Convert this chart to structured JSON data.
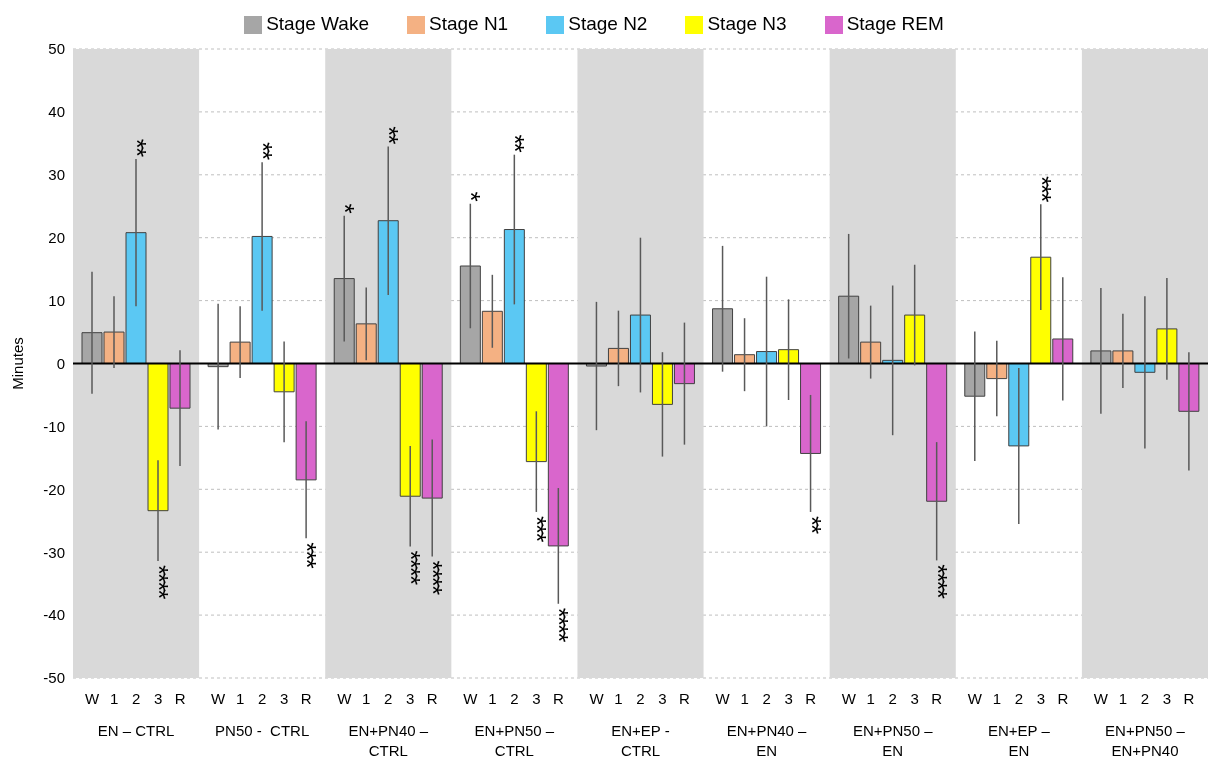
{
  "chart_data": {
    "type": "bar",
    "ylabel": "Minutes",
    "categories": [
      "EN – CTRL",
      "PN50 -  CTRL",
      "EN+PN40 –\nCTRL",
      "EN+PN50 –\nCTRL",
      "EN+EP -\nCTRL",
      "EN+PN40 –\nEN",
      "EN+PN50 –\nEN",
      "EN+EP –\nEN",
      "EN+PN50 –\nEN+PN40"
    ],
    "series": [
      {
        "name": "Stage Wake",
        "color": "#a6a6a6",
        "values": [
          4.9,
          -0.5,
          13.5,
          15.5,
          -0.4,
          8.7,
          10.7,
          -5.2,
          2.0
        ],
        "errors": [
          9.7,
          10,
          10,
          9.9,
          10.2,
          10,
          9.9,
          10.3,
          10
        ],
        "value_labels": [
          null,
          null,
          "*",
          "*",
          null,
          null,
          null,
          null,
          null
        ]
      },
      {
        "name": "Stage N1",
        "color": "#f4b183",
        "values": [
          5.0,
          3.4,
          6.3,
          8.3,
          2.4,
          1.4,
          3.4,
          -2.4,
          2.0
        ],
        "errors": [
          5.7,
          5.7,
          5.8,
          5.8,
          6,
          5.8,
          5.8,
          6,
          5.9
        ],
        "value_labels": [
          null,
          null,
          null,
          null,
          null,
          null,
          null,
          null,
          null
        ]
      },
      {
        "name": "Stage N2",
        "color": "#5bc8f3",
        "values": [
          20.8,
          20.2,
          22.7,
          21.3,
          7.7,
          1.9,
          0.5,
          -13.1,
          -1.4
        ],
        "errors": [
          11.7,
          11.8,
          11.8,
          11.9,
          12.3,
          11.9,
          11.9,
          12.4,
          12.1
        ],
        "value_labels": [
          "**",
          "**",
          "**",
          "**",
          null,
          null,
          null,
          null,
          null
        ]
      },
      {
        "name": "Stage N3",
        "color": "#ffff00",
        "values": [
          -23.4,
          -4.5,
          -21.1,
          -15.6,
          -6.5,
          2.2,
          7.7,
          16.9,
          5.5
        ],
        "errors": [
          8,
          8,
          8,
          8,
          8.3,
          8,
          8,
          8.4,
          8.1
        ],
        "value_labels": [
          "****",
          null,
          "****",
          "***",
          null,
          null,
          null,
          "***",
          null
        ]
      },
      {
        "name": "Stage REM",
        "color": "#d966cc",
        "values": [
          -7.1,
          -18.5,
          -21.4,
          -29.0,
          -3.2,
          -14.3,
          -21.9,
          3.9,
          -7.6
        ],
        "errors": [
          9.2,
          9.3,
          9.3,
          9.2,
          9.7,
          9.3,
          9.4,
          9.8,
          9.4
        ],
        "value_labels": [
          null,
          "***",
          "****",
          "****",
          null,
          "**",
          "****",
          null,
          null
        ]
      }
    ],
    "ylim": [
      -50,
      50
    ],
    "yticks": [
      -50,
      -40,
      -30,
      -20,
      -10,
      0,
      10,
      20,
      30,
      40,
      50
    ],
    "grid": "y",
    "legend": "top",
    "bands": [
      {
        "axis": "x",
        "from": "EN – CTRL",
        "to": "EN – CTRL",
        "color": "#d9d9d9"
      },
      {
        "axis": "x",
        "from": "EN+PN40 –\nCTRL",
        "to": "EN+PN40 –\nCTRL",
        "color": "#d9d9d9"
      },
      {
        "axis": "x",
        "from": "EN+EP -\nCTRL",
        "to": "EN+EP -\nCTRL",
        "color": "#d9d9d9"
      },
      {
        "axis": "x",
        "from": "EN+PN50 –\nEN",
        "to": "EN+PN50 –\nEN",
        "color": "#d9d9d9"
      },
      {
        "axis": "x",
        "from": "EN+PN50 –\nEN+PN40",
        "to": "EN+PN50 –\nEN+PN40",
        "color": "#d9d9d9"
      }
    ],
    "annotations": [
      "W",
      "1",
      "2",
      "3",
      "R",
      "W",
      "1",
      "2",
      "3",
      "R",
      "W",
      "1",
      "2",
      "3",
      "R",
      "W",
      "1",
      "2",
      "3",
      "R",
      "W",
      "1",
      "2",
      "3",
      "R",
      "W",
      "1",
      "2",
      "3",
      "R",
      "W",
      "1",
      "2",
      "3",
      "R",
      "W",
      "1",
      "2",
      "3",
      "R",
      "W",
      "1",
      "2",
      "3",
      "R"
    ]
  }
}
